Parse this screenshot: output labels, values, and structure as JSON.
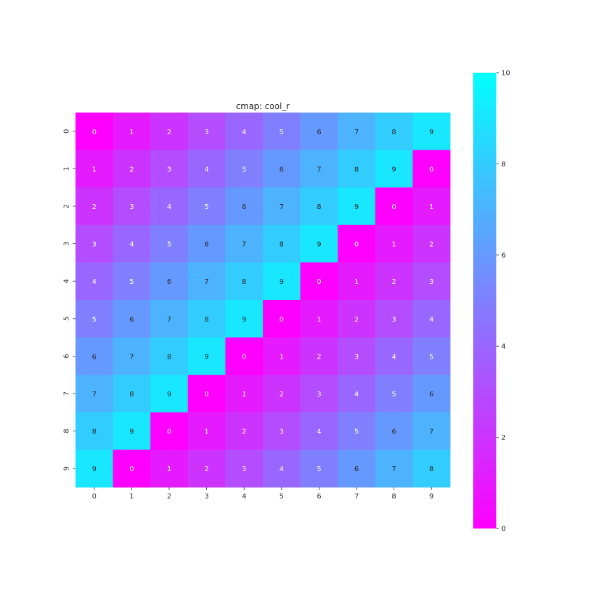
{
  "chart_data": {
    "type": "heatmap",
    "title": "cmap: cool_r",
    "colormap": "cool_r",
    "xlabel": "",
    "ylabel": "",
    "x_categories": [
      "0",
      "1",
      "2",
      "3",
      "4",
      "5",
      "6",
      "7",
      "8",
      "9"
    ],
    "y_categories": [
      "0",
      "1",
      "2",
      "3",
      "4",
      "5",
      "6",
      "7",
      "8",
      "9"
    ],
    "values": [
      [
        0,
        1,
        2,
        3,
        4,
        5,
        6,
        7,
        8,
        9
      ],
      [
        1,
        2,
        3,
        4,
        5,
        6,
        7,
        8,
        9,
        0
      ],
      [
        2,
        3,
        4,
        5,
        6,
        7,
        8,
        9,
        0,
        1
      ],
      [
        3,
        4,
        5,
        6,
        7,
        8,
        9,
        0,
        1,
        2
      ],
      [
        4,
        5,
        6,
        7,
        8,
        9,
        0,
        1,
        2,
        3
      ],
      [
        5,
        6,
        7,
        8,
        9,
        0,
        1,
        2,
        3,
        4
      ],
      [
        6,
        7,
        8,
        9,
        0,
        1,
        2,
        3,
        4,
        5
      ],
      [
        7,
        8,
        9,
        0,
        1,
        2,
        3,
        4,
        5,
        6
      ],
      [
        8,
        9,
        0,
        1,
        2,
        3,
        4,
        5,
        6,
        7
      ],
      [
        9,
        0,
        1,
        2,
        3,
        4,
        5,
        6,
        7,
        8
      ]
    ],
    "annotated": true,
    "colorbar": {
      "range": [
        0,
        10
      ],
      "ticks": [
        "0",
        "2",
        "4",
        "6",
        "8",
        "10"
      ],
      "low_color": "#ff00ff",
      "high_color": "#00ffff"
    }
  }
}
